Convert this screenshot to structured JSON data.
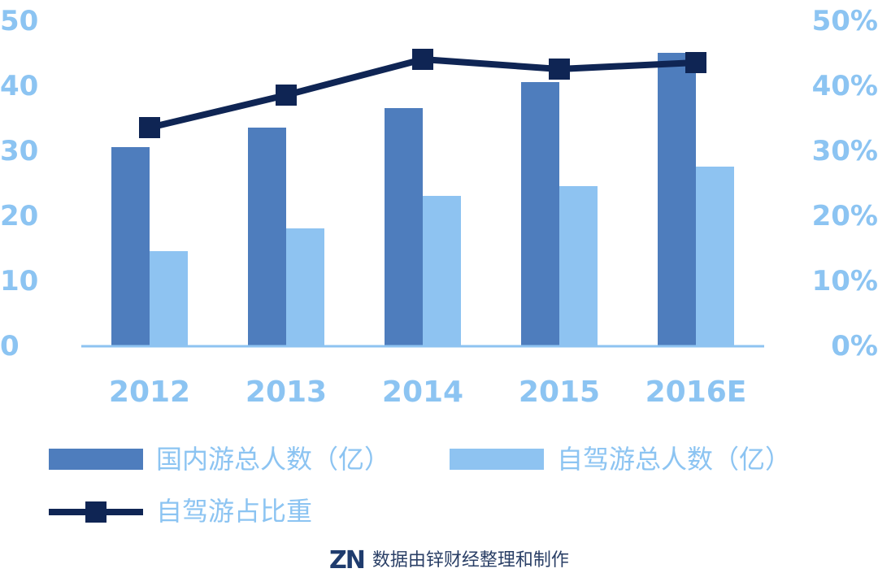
{
  "colors": {
    "domestic": "#4e7dbd",
    "selfdrive": "#8ec3f1",
    "share": "#0f2554",
    "tick": "#8cc4f2",
    "source_text": "#2a3f66"
  },
  "chart_data": {
    "type": "bar",
    "categories": [
      "2012",
      "2013",
      "2014",
      "2015",
      "2016E"
    ],
    "y_ticks": [
      "0",
      "10",
      "20",
      "30",
      "40",
      "50"
    ],
    "y2_ticks": [
      "0%",
      "10%",
      "20%",
      "30%",
      "40%",
      "50%"
    ],
    "ylim": [
      0,
      50
    ],
    "y2lim": [
      0,
      50
    ],
    "grid": false,
    "legend_position": "bottom",
    "series": [
      {
        "name": "国内游总人数（亿）",
        "type": "bar",
        "axis": "left",
        "values": [
          30.5,
          33.5,
          36.5,
          40.5,
          45.0
        ]
      },
      {
        "name": "自驾游总人数（亿）",
        "type": "bar",
        "axis": "left",
        "values": [
          14.5,
          18.0,
          23.0,
          24.5,
          27.5
        ]
      },
      {
        "name": "自驾游占比重",
        "type": "line",
        "axis": "right",
        "values": [
          33.5,
          38.5,
          44.0,
          42.5,
          43.5
        ]
      }
    ]
  },
  "legend": {
    "domestic": "国内游总人数（亿）",
    "selfdrive": "自驾游总人数（亿）",
    "share": "自驾游占比重"
  },
  "source": {
    "logo_text": "ZN",
    "text": "数据由锌财经整理和制作"
  }
}
